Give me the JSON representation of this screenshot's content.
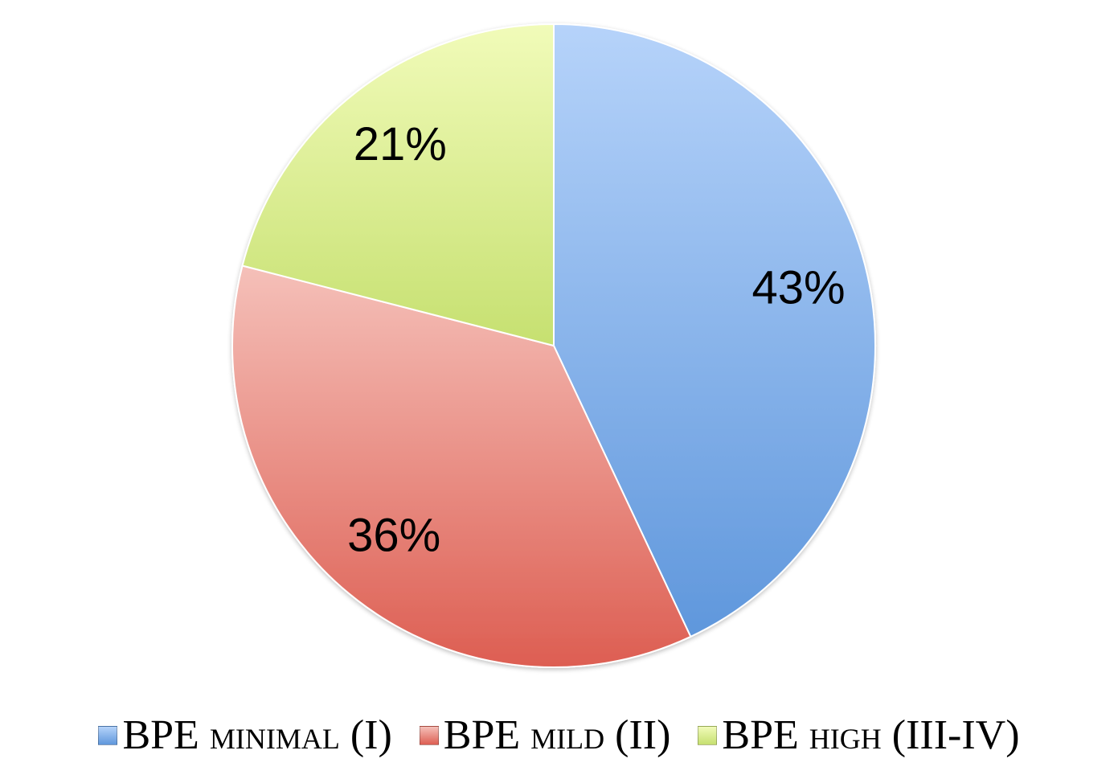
{
  "chart_data": {
    "type": "pie",
    "title": "",
    "slices": [
      {
        "label": "BPE minimal (I)",
        "value": 43,
        "display": "43%",
        "color": "#86b1ea"
      },
      {
        "label": "BPE mild (II)",
        "value": 36,
        "display": "36%",
        "color": "#e97b70"
      },
      {
        "label": "BPE high (III-IV)",
        "value": 21,
        "display": "21%",
        "color": "#d3ea8c"
      }
    ],
    "legend_position": "bottom",
    "start_angle": "12 o'clock",
    "direction": "clockwise"
  },
  "legend": {
    "items": [
      {
        "prefix": "BPE ",
        "smallcaps": "minimal",
        "suffix": " (I)"
      },
      {
        "prefix": "BPE ",
        "smallcaps": "mild",
        "suffix": " (II)"
      },
      {
        "prefix": "BPE ",
        "smallcaps": "high",
        "suffix": " (III-IV)"
      }
    ]
  }
}
